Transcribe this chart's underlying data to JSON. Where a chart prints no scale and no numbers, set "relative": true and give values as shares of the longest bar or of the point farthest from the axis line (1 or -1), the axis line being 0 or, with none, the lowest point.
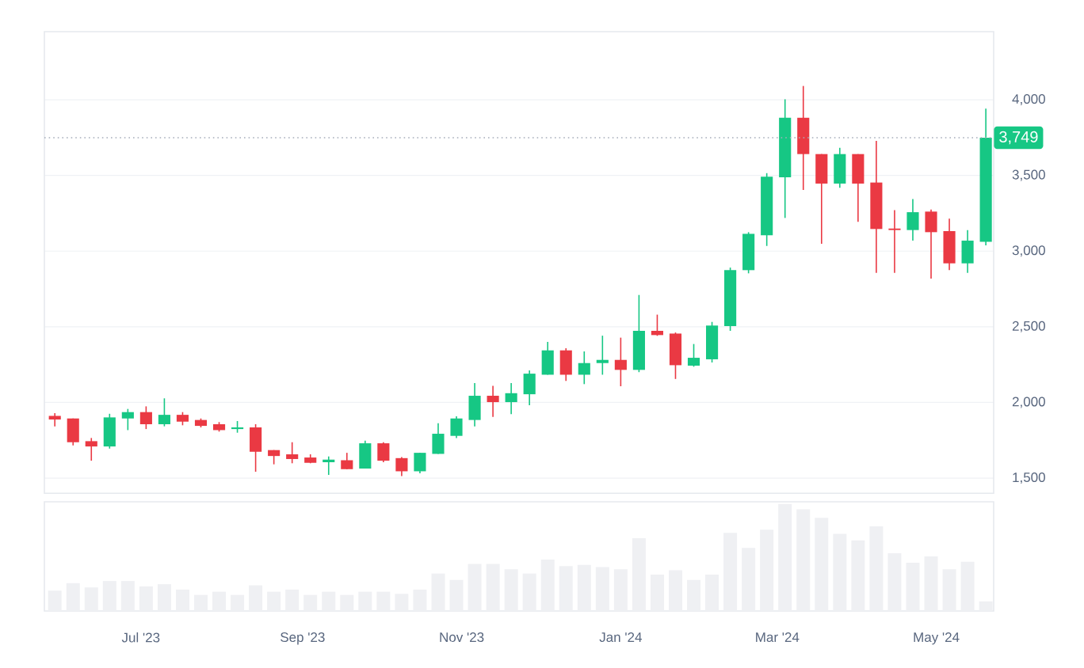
{
  "chart_data": [
    {
      "type": "candlestick",
      "x": [
        "2023-05-29",
        "2023-06-05",
        "2023-06-12",
        "2023-06-19",
        "2023-06-26",
        "2023-07-03",
        "2023-07-10",
        "2023-07-17",
        "2023-07-24",
        "2023-07-31",
        "2023-08-07",
        "2023-08-14",
        "2023-08-21",
        "2023-08-28",
        "2023-09-04",
        "2023-09-11",
        "2023-09-18",
        "2023-09-25",
        "2023-10-02",
        "2023-10-09",
        "2023-10-16",
        "2023-10-23",
        "2023-10-30",
        "2023-11-06",
        "2023-11-13",
        "2023-11-20",
        "2023-11-27",
        "2023-12-04",
        "2023-12-11",
        "2023-12-18",
        "2023-12-25",
        "2024-01-01",
        "2024-01-08",
        "2024-01-15",
        "2024-01-22",
        "2024-01-29",
        "2024-02-05",
        "2024-02-12",
        "2024-02-19",
        "2024-02-26",
        "2024-03-04",
        "2024-03-11",
        "2024-03-18",
        "2024-03-25",
        "2024-04-01",
        "2024-04-08",
        "2024-04-15",
        "2024-04-22",
        "2024-04-29",
        "2024-05-06",
        "2024-05-13",
        "2024-05-20"
      ],
      "ohlc": [
        [
          1911,
          1929,
          1842,
          1887
        ],
        [
          1894,
          1894,
          1716,
          1737
        ],
        [
          1744,
          1765,
          1615,
          1709
        ],
        [
          1709,
          1925,
          1695,
          1901
        ],
        [
          1894,
          1957,
          1817,
          1936
        ],
        [
          1936,
          1974,
          1824,
          1856
        ],
        [
          1856,
          2027,
          1842,
          1918
        ],
        [
          1918,
          1936,
          1849,
          1873
        ],
        [
          1884,
          1894,
          1835,
          1845
        ],
        [
          1856,
          1870,
          1807,
          1817
        ],
        [
          1824,
          1877,
          1800,
          1835
        ],
        [
          1835,
          1856,
          1542,
          1674
        ],
        [
          1685,
          1685,
          1591,
          1646
        ],
        [
          1657,
          1737,
          1598,
          1626
        ],
        [
          1636,
          1657,
          1598,
          1601
        ],
        [
          1605,
          1643,
          1521,
          1622
        ],
        [
          1618,
          1667,
          1559,
          1559
        ],
        [
          1563,
          1748,
          1563,
          1730
        ],
        [
          1730,
          1737,
          1605,
          1615
        ],
        [
          1632,
          1639,
          1514,
          1545
        ],
        [
          1545,
          1667,
          1531,
          1667
        ],
        [
          1660,
          1863,
          1660,
          1793
        ],
        [
          1779,
          1908,
          1765,
          1894
        ],
        [
          1884,
          2128,
          1842,
          2044
        ],
        [
          2044,
          2110,
          1904,
          2002
        ],
        [
          2002,
          2128,
          1922,
          2061
        ],
        [
          2054,
          2211,
          1981,
          2190
        ],
        [
          2183,
          2400,
          2183,
          2344
        ],
        [
          2344,
          2358,
          2142,
          2183
        ],
        [
          2183,
          2337,
          2121,
          2260
        ],
        [
          2260,
          2441,
          2183,
          2281
        ],
        [
          2281,
          2428,
          2107,
          2215
        ],
        [
          2215,
          2710,
          2200,
          2473
        ],
        [
          2473,
          2580,
          2440,
          2445
        ],
        [
          2455,
          2462,
          2155,
          2246
        ],
        [
          2243,
          2386,
          2236,
          2295
        ],
        [
          2285,
          2532,
          2264,
          2508
        ],
        [
          2504,
          2891,
          2473,
          2874
        ],
        [
          2874,
          3125,
          2853,
          3114
        ],
        [
          3104,
          3515,
          3034,
          3491
        ],
        [
          3487,
          4003,
          3219,
          3881
        ],
        [
          3881,
          4091,
          3404,
          3641
        ],
        [
          3641,
          3641,
          3048,
          3446
        ],
        [
          3446,
          3683,
          3418,
          3641
        ],
        [
          3641,
          3641,
          3194,
          3446
        ],
        [
          3453,
          3728,
          2856,
          3146
        ],
        [
          3149,
          3271,
          2856,
          3139
        ],
        [
          3139,
          3344,
          3069,
          3257
        ],
        [
          3261,
          3275,
          2818,
          3125
        ],
        [
          3132,
          3215,
          2874,
          2919
        ],
        [
          2919,
          3139,
          2856,
          3069
        ],
        [
          3062,
          3941,
          3038,
          3749
        ]
      ],
      "colors": [
        "#ea3943",
        "#ea3943",
        "#ea3943",
        "#16c784",
        "#16c784",
        "#ea3943",
        "#16c784",
        "#ea3943",
        "#ea3943",
        "#ea3943",
        "#16c784",
        "#ea3943",
        "#ea3943",
        "#ea3943",
        "#ea3943",
        "#16c784",
        "#ea3943",
        "#16c784",
        "#ea3943",
        "#ea3943",
        "#16c784",
        "#16c784",
        "#16c784",
        "#16c784",
        "#ea3943",
        "#16c784",
        "#16c784",
        "#16c784",
        "#ea3943",
        "#16c784",
        "#16c784",
        "#ea3943",
        "#16c784",
        "#ea3943",
        "#ea3943",
        "#16c784",
        "#16c784",
        "#16c784",
        "#16c784",
        "#16c784",
        "#16c784",
        "#ea3943",
        "#ea3943",
        "#16c784",
        "#ea3943",
        "#ea3943",
        "#ea3943",
        "#16c784",
        "#ea3943",
        "#ea3943",
        "#16c784",
        "#16c784"
      ],
      "xlim": [
        "2023-05-25",
        "2024-05-23"
      ],
      "ylim": [
        1400,
        4450
      ],
      "yticks": [
        {
          "value": 1500,
          "label": "1,500"
        },
        {
          "value": 2000,
          "label": "2,000"
        },
        {
          "value": 2500,
          "label": "2,500"
        },
        {
          "value": 3000,
          "label": "3,000"
        },
        {
          "value": 3500,
          "label": "3,500"
        },
        {
          "value": 4000,
          "label": "4,000"
        }
      ],
      "grid": "y",
      "tick_labels": "y",
      "ref_lines": [
        {
          "axis": "y",
          "value": 3749,
          "label": "3,749",
          "color": "#a6adba",
          "line_style": "dotted"
        }
      ]
    },
    {
      "type": "bar",
      "relative": true,
      "color": "#eff0f3",
      "x": [
        "2023-05-29",
        "2023-06-05",
        "2023-06-12",
        "2023-06-19",
        "2023-06-26",
        "2023-07-03",
        "2023-07-10",
        "2023-07-17",
        "2023-07-24",
        "2023-07-31",
        "2023-08-07",
        "2023-08-14",
        "2023-08-21",
        "2023-08-28",
        "2023-09-04",
        "2023-09-11",
        "2023-09-18",
        "2023-09-25",
        "2023-10-02",
        "2023-10-09",
        "2023-10-16",
        "2023-10-23",
        "2023-10-30",
        "2023-11-06",
        "2023-11-13",
        "2023-11-20",
        "2023-11-27",
        "2023-12-04",
        "2023-12-11",
        "2023-12-18",
        "2023-12-25",
        "2024-01-01",
        "2024-01-08",
        "2024-01-15",
        "2024-01-22",
        "2024-01-29",
        "2024-02-05",
        "2024-02-12",
        "2024-02-19",
        "2024-02-26",
        "2024-03-04",
        "2024-03-11",
        "2024-03-18",
        "2024-03-25",
        "2024-04-01",
        "2024-04-08",
        "2024-04-15",
        "2024-04-22",
        "2024-04-29",
        "2024-05-06",
        "2024-05-13",
        "2024-05-20"
      ],
      "values": [
        0.19,
        0.26,
        0.22,
        0.28,
        0.28,
        0.23,
        0.25,
        0.2,
        0.15,
        0.18,
        0.15,
        0.24,
        0.18,
        0.2,
        0.15,
        0.18,
        0.15,
        0.18,
        0.18,
        0.16,
        0.2,
        0.35,
        0.29,
        0.44,
        0.44,
        0.39,
        0.35,
        0.48,
        0.42,
        0.43,
        0.41,
        0.39,
        0.68,
        0.34,
        0.38,
        0.29,
        0.34,
        0.73,
        0.59,
        0.76,
        1,
        0.95,
        0.87,
        0.72,
        0.66,
        0.79,
        0.54,
        0.45,
        0.51,
        0.39,
        0.46,
        0.09
      ],
      "xlim": [
        "2023-05-25",
        "2024-05-23"
      ],
      "xticks": [
        {
          "value": "2023-07-01",
          "label": "Jul '23"
        },
        {
          "value": "2023-09-01",
          "label": "Sep '23"
        },
        {
          "value": "2023-11-01",
          "label": "Nov '23"
        },
        {
          "value": "2024-01-01",
          "label": "Jan '24"
        },
        {
          "value": "2024-03-01",
          "label": "Mar '24"
        },
        {
          "value": "2024-05-01",
          "label": "May '24"
        }
      ],
      "tick_labels": "x"
    }
  ]
}
